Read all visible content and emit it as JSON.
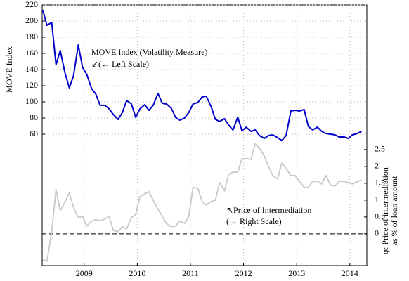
{
  "chart_data": {
    "type": "line",
    "ylabel": "MOVE Index",
    "y2label": [
      "φ: Price of intermediation",
      "as % of loan amount"
    ],
    "annotations": [
      "↙(← Left Scale)",
      "↖Price of Intermediation",
      "(→ Right Scale)"
    ],
    "xlim": [
      2008.71,
      2014.82
    ],
    "xticks": [
      {
        "value": 2009.5,
        "label": "2009"
      },
      {
        "value": 2010.5,
        "label": "2010"
      },
      {
        "value": 2011.5,
        "label": "2011"
      },
      {
        "value": 2012.5,
        "label": "2012"
      },
      {
        "value": 2013.5,
        "label": "2013"
      },
      {
        "value": 2014.5,
        "label": "2014"
      }
    ],
    "ylim": [
      -102.6,
      220
    ],
    "yticks": [
      60,
      80,
      100,
      120,
      140,
      160,
      180,
      200,
      220
    ],
    "y2lim": [
      -0.94,
      6.79
    ],
    "y2ticks": [
      0,
      0.5,
      1,
      1.5,
      2,
      2.5
    ],
    "grid": true,
    "y2_reference_line": 0,
    "x": [
      2008.72,
      2008.8,
      2008.89,
      2008.97,
      2009.05,
      2009.14,
      2009.22,
      2009.3,
      2009.39,
      2009.47,
      2009.55,
      2009.64,
      2009.72,
      2009.8,
      2009.89,
      2009.97,
      2010.05,
      2010.14,
      2010.22,
      2010.3,
      2010.39,
      2010.47,
      2010.55,
      2010.64,
      2010.72,
      2010.8,
      2010.89,
      2010.97,
      2011.05,
      2011.14,
      2011.22,
      2011.3,
      2011.39,
      2011.47,
      2011.55,
      2011.64,
      2011.72,
      2011.8,
      2011.89,
      2011.97,
      2012.05,
      2012.14,
      2012.22,
      2012.3,
      2012.39,
      2012.47,
      2012.55,
      2012.64,
      2012.72,
      2012.8,
      2012.89,
      2012.97,
      2013.05,
      2013.14,
      2013.22,
      2013.3,
      2013.39,
      2013.47,
      2013.55,
      2013.64,
      2013.72,
      2013.8,
      2013.89,
      2013.97,
      2014.05,
      2014.14,
      2014.22,
      2014.3,
      2014.39,
      2014.47,
      2014.55,
      2014.64,
      2014.72
    ],
    "series": [
      {
        "name": "MOVE Index (Volatility Measure)",
        "color": "#0000cc",
        "axis": "y",
        "values": [
          213.9,
          194.8,
          198.3,
          146,
          163.5,
          135.7,
          117.4,
          132.2,
          170.4,
          142.6,
          133.9,
          116.5,
          109.6,
          95.7,
          95.7,
          91.3,
          84.3,
          78.3,
          87,
          101.7,
          97.4,
          80.9,
          91.3,
          96.5,
          89.6,
          95.7,
          110.4,
          98.3,
          97.4,
          92.2,
          80.9,
          77.4,
          80,
          87,
          97.4,
          99.1,
          106.1,
          107,
          93.9,
          78.3,
          75.7,
          79.1,
          71.3,
          65.2,
          80.9,
          64.3,
          68.7,
          63.5,
          65.2,
          58.3,
          54.8,
          58.3,
          59.1,
          55.7,
          52.2,
          58.3,
          88.7,
          89.6,
          88.7,
          90.4,
          69.6,
          65.2,
          68.7,
          63.5,
          60.9,
          60,
          59.1,
          56.5,
          56.5,
          54.8,
          59.1,
          60.9,
          63.5
        ]
      },
      {
        "color": "#c8c8c8",
        "axis": "y2",
        "values": [
          -0.77,
          -0.81,
          0.06,
          1.31,
          0.69,
          0.94,
          1.21,
          0.79,
          0.48,
          0.52,
          0.23,
          0.38,
          0.42,
          0.38,
          0.44,
          0.52,
          0.1,
          0.06,
          0.21,
          0.15,
          0.48,
          0.58,
          1.1,
          1.19,
          1.25,
          1.0,
          0.73,
          0.52,
          0.31,
          0.21,
          0.23,
          0.38,
          0.31,
          0.52,
          1.38,
          1.35,
          0.96,
          0.85,
          0.96,
          1.0,
          1.52,
          1.27,
          1.77,
          1.83,
          1.83,
          2.23,
          2.23,
          2.21,
          2.67,
          2.54,
          2.31,
          2.0,
          1.73,
          1.63,
          2.1,
          1.94,
          1.73,
          1.73,
          1.56,
          1.38,
          1.38,
          1.56,
          1.56,
          1.48,
          1.73,
          1.44,
          1.42,
          1.56,
          1.56,
          1.52,
          1.48,
          1.54,
          1.6
        ]
      }
    ]
  }
}
